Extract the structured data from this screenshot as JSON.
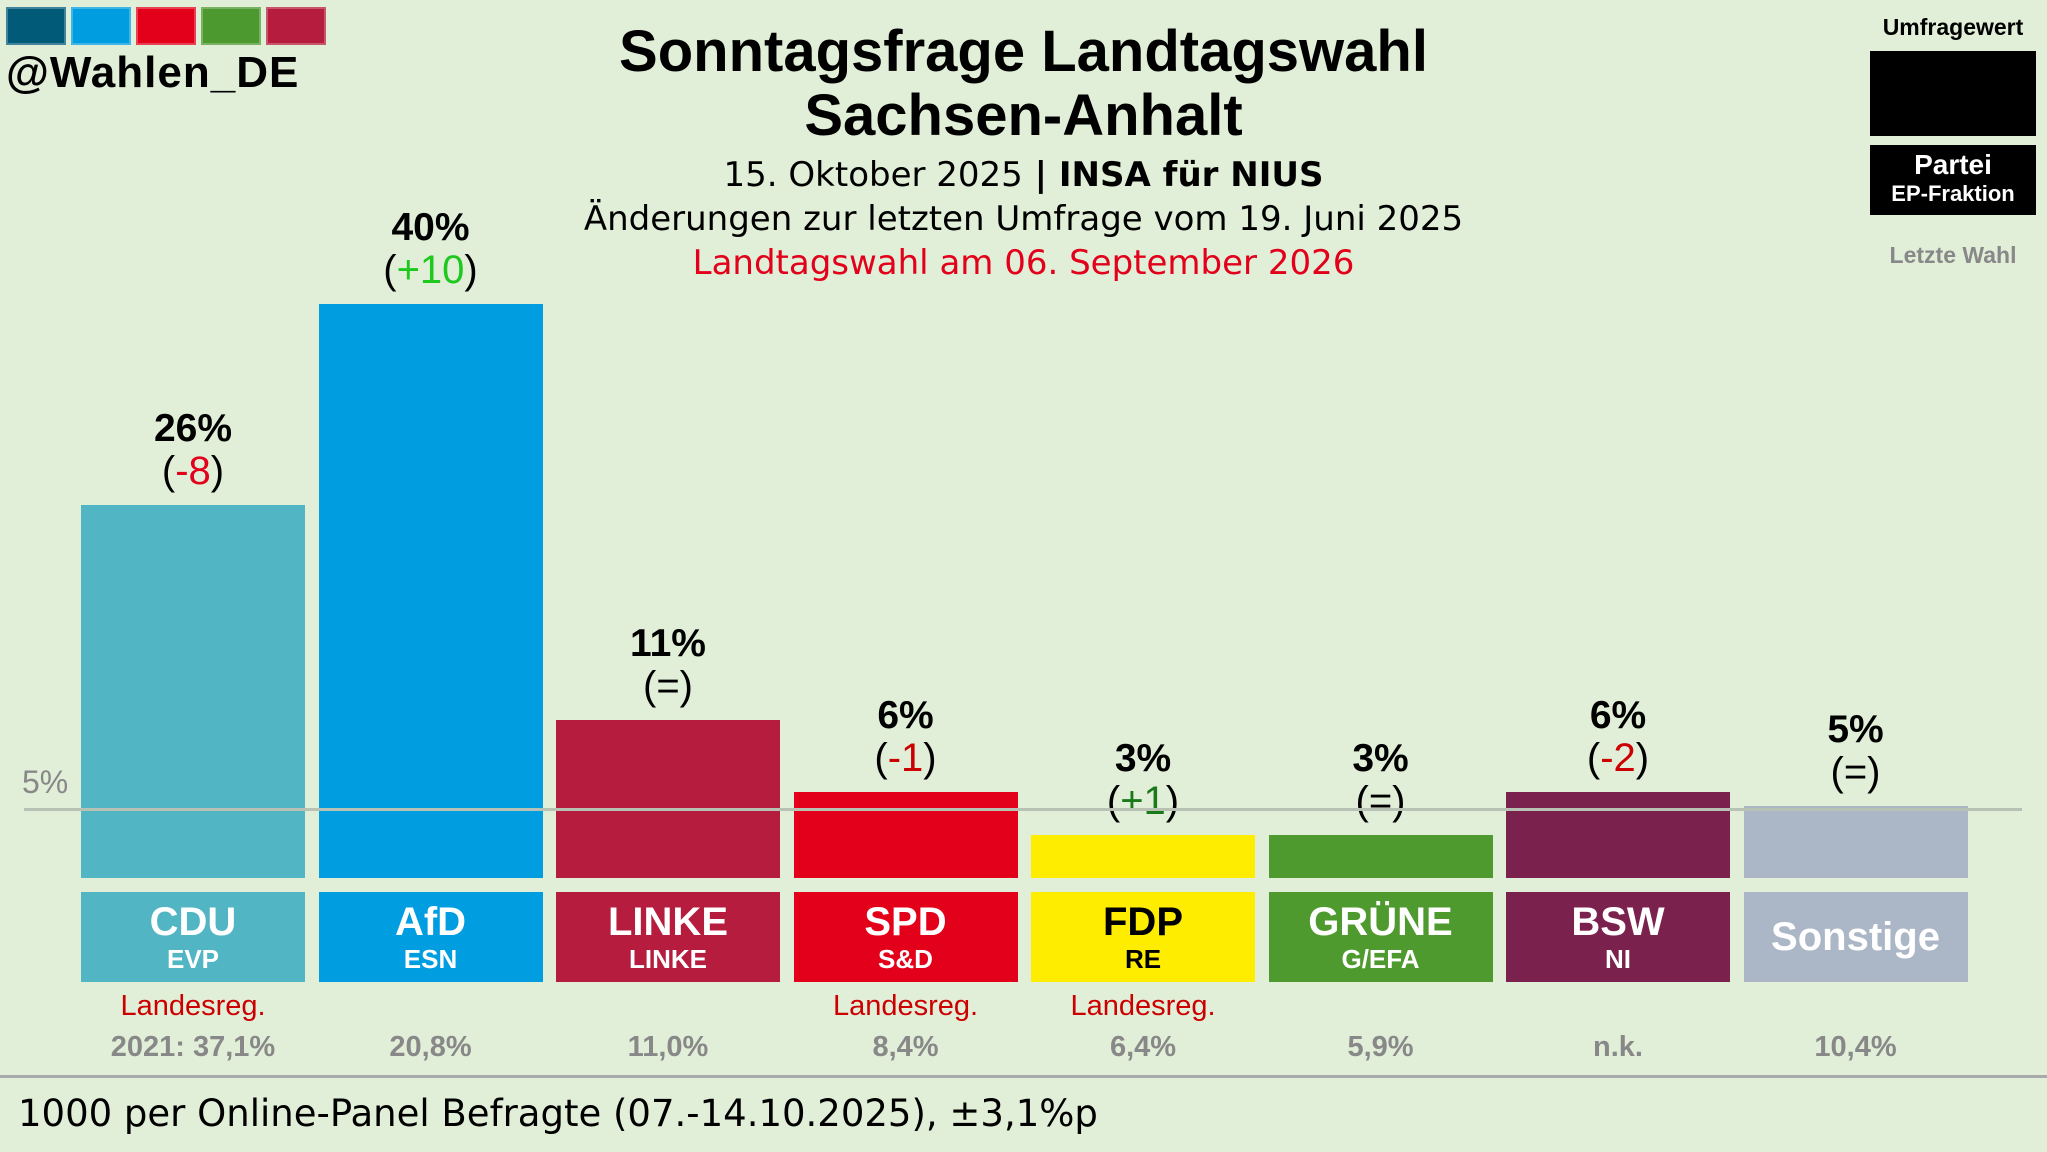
{
  "brand": {
    "handle": "@Wahlen_DE",
    "logo_colors": [
      "#005a78",
      "#009ee0",
      "#e2001a",
      "#4c992f",
      "#b51c3d"
    ]
  },
  "title_line1": "Sonntagsfrage Landtagswahl",
  "title_line2": "Sachsen-Anhalt",
  "subtitle_date": "15. Oktober 2025",
  "subtitle_sep": " | ",
  "subtitle_institute": "INSA für NIUS",
  "subtitle_changes": "Änderungen zur letzten Umfrage vom 19. Juni 2025",
  "subtitle_election": "Landtagswahl am 06. September 2026",
  "legend": {
    "poll": "Umfragewert",
    "party": "Partei",
    "group": "EP-Fraktion",
    "last": "Letzte Wahl"
  },
  "footer": "1000 per Online-Panel Befragte (07.-14.10.2025), ±3,1%p",
  "chart_data": {
    "type": "bar",
    "title": "Sonntagsfrage Landtagswahl Sachsen-Anhalt",
    "threshold_label": "5%",
    "threshold": 5,
    "ylim": [
      0,
      40
    ],
    "categories": [
      "CDU",
      "AfD",
      "LINKE",
      "SPD",
      "FDP",
      "GRÜNE",
      "BSW",
      "Sonstige"
    ],
    "values": [
      26,
      40,
      11,
      6,
      3,
      3,
      6,
      5
    ],
    "bars": [
      {
        "party": "CDU",
        "group": "EVP",
        "value": 26,
        "value_label": "26%",
        "change": "-8",
        "change_color": "#e2001a",
        "color": "#52b5c3",
        "text_color": "#ffffff",
        "government": "Landesreg.",
        "last": "2021: 37,1%"
      },
      {
        "party": "AfD",
        "group": "ESN",
        "value": 40,
        "value_label": "40%",
        "change": "+10",
        "change_color": "#1ec81e",
        "color": "#009ee0",
        "text_color": "#ffffff",
        "government": "",
        "last": "20,8%"
      },
      {
        "party": "LINKE",
        "group": "LINKE",
        "value": 11,
        "value_label": "11%",
        "change": "=",
        "change_color": "#000000",
        "color": "#b51c3d",
        "text_color": "#ffffff",
        "government": "",
        "last": "11,0%"
      },
      {
        "party": "SPD",
        "group": "S&D",
        "value": 6,
        "value_label": "6%",
        "change": "-1",
        "change_color": "#cc0000",
        "color": "#e2001a",
        "text_color": "#ffffff",
        "government": "Landesreg.",
        "last": "8,4%"
      },
      {
        "party": "FDP",
        "group": "RE",
        "value": 3,
        "value_label": "3%",
        "change": "+1",
        "change_color": "#1a7a1a",
        "color": "#ffed00",
        "text_color": "#000000",
        "government": "Landesreg.",
        "last": "6,4%"
      },
      {
        "party": "GRÜNE",
        "group": "G/EFA",
        "value": 3,
        "value_label": "3%",
        "change": "=",
        "change_color": "#000000",
        "color": "#4f9a2e",
        "text_color": "#ffffff",
        "government": "",
        "last": "5,9%"
      },
      {
        "party": "BSW",
        "group": "NI",
        "value": 6,
        "value_label": "6%",
        "change": "-2",
        "change_color": "#cc0000",
        "color": "#7a214e",
        "text_color": "#ffffff",
        "government": "",
        "last": "n.k."
      },
      {
        "party": "Sonstige",
        "group": "",
        "value": 5,
        "value_label": "5%",
        "change": "=",
        "change_color": "#000000",
        "color": "#abb6c7",
        "text_color": "#ffffff",
        "government": "",
        "last": "10,4%"
      }
    ]
  }
}
